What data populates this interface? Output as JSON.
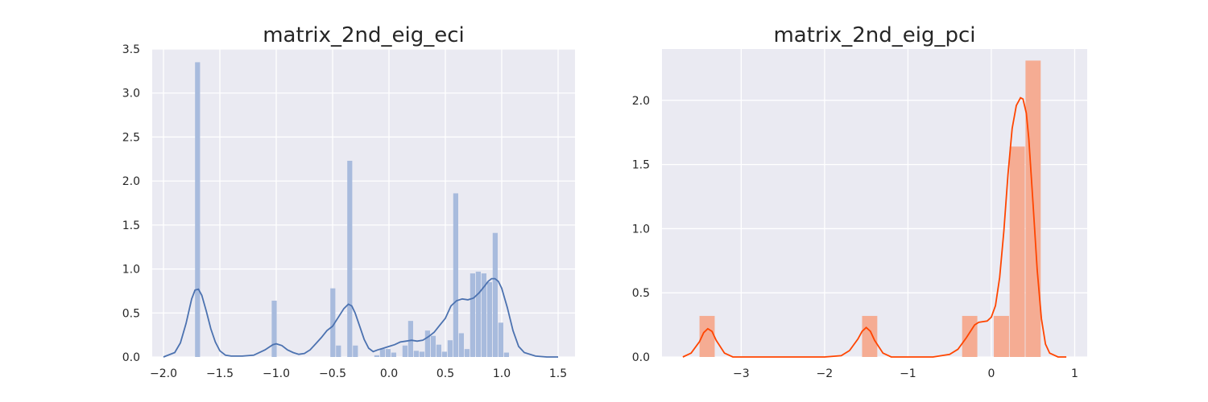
{
  "chart_data": [
    {
      "type": "bar",
      "title": "matrix_2nd_eig_eci",
      "xlabel": "",
      "ylabel": "",
      "xlim": [
        -2.1,
        1.65
      ],
      "ylim": [
        0,
        3.5
      ],
      "xticks": [
        -2.0,
        -1.5,
        -1.0,
        -0.5,
        0.0,
        0.5,
        1.0,
        1.5
      ],
      "xtick_labels": [
        "−2.0",
        "−1.5",
        "−1.0",
        "−0.5",
        "0.0",
        "0.5",
        "1.0",
        "1.5"
      ],
      "yticks": [
        0.0,
        0.5,
        1.0,
        1.5,
        2.0,
        2.5,
        3.0,
        3.5
      ],
      "ytick_labels": [
        "0.0",
        "0.5",
        "1.0",
        "1.5",
        "2.0",
        "2.5",
        "3.0",
        "3.5"
      ],
      "grid": true,
      "bar_color": "#a8bbdd",
      "kde_color": "#4c72b0",
      "histogram": [
        {
          "x0": -1.72,
          "x1": -1.67,
          "y": 3.35
        },
        {
          "x0": -1.04,
          "x1": -0.99,
          "y": 0.64
        },
        {
          "x0": -0.52,
          "x1": -0.47,
          "y": 0.78
        },
        {
          "x0": -0.47,
          "x1": -0.42,
          "y": 0.13
        },
        {
          "x0": -0.37,
          "x1": -0.32,
          "y": 2.23
        },
        {
          "x0": -0.32,
          "x1": -0.27,
          "y": 0.13
        },
        {
          "x0": -0.13,
          "x1": -0.08,
          "y": 0.02
        },
        {
          "x0": -0.08,
          "x1": -0.03,
          "y": 0.09
        },
        {
          "x0": -0.03,
          "x1": 0.02,
          "y": 0.09
        },
        {
          "x0": 0.02,
          "x1": 0.07,
          "y": 0.05
        },
        {
          "x0": 0.12,
          "x1": 0.17,
          "y": 0.13
        },
        {
          "x0": 0.17,
          "x1": 0.22,
          "y": 0.41
        },
        {
          "x0": 0.22,
          "x1": 0.27,
          "y": 0.07
        },
        {
          "x0": 0.27,
          "x1": 0.32,
          "y": 0.06
        },
        {
          "x0": 0.32,
          "x1": 0.37,
          "y": 0.3
        },
        {
          "x0": 0.37,
          "x1": 0.42,
          "y": 0.24
        },
        {
          "x0": 0.42,
          "x1": 0.47,
          "y": 0.14
        },
        {
          "x0": 0.47,
          "x1": 0.52,
          "y": 0.06
        },
        {
          "x0": 0.52,
          "x1": 0.57,
          "y": 0.19
        },
        {
          "x0": 0.57,
          "x1": 0.62,
          "y": 1.86
        },
        {
          "x0": 0.62,
          "x1": 0.67,
          "y": 0.27
        },
        {
          "x0": 0.67,
          "x1": 0.72,
          "y": 0.09
        },
        {
          "x0": 0.72,
          "x1": 0.77,
          "y": 0.95
        },
        {
          "x0": 0.77,
          "x1": 0.82,
          "y": 0.97
        },
        {
          "x0": 0.82,
          "x1": 0.87,
          "y": 0.95
        },
        {
          "x0": 0.87,
          "x1": 0.92,
          "y": 0.85
        },
        {
          "x0": 0.92,
          "x1": 0.97,
          "y": 1.41
        },
        {
          "x0": 0.97,
          "x1": 1.02,
          "y": 0.39
        },
        {
          "x0": 1.02,
          "x1": 1.07,
          "y": 0.05
        }
      ],
      "kde": {
        "x": [
          -2.0,
          -1.9,
          -1.85,
          -1.8,
          -1.75,
          -1.72,
          -1.69,
          -1.66,
          -1.62,
          -1.58,
          -1.54,
          -1.5,
          -1.45,
          -1.4,
          -1.3,
          -1.2,
          -1.1,
          -1.03,
          -1.0,
          -0.95,
          -0.9,
          -0.85,
          -0.8,
          -0.75,
          -0.7,
          -0.65,
          -0.6,
          -0.55,
          -0.5,
          -0.45,
          -0.4,
          -0.36,
          -0.33,
          -0.3,
          -0.26,
          -0.22,
          -0.18,
          -0.14,
          -0.1,
          -0.05,
          0.0,
          0.05,
          0.1,
          0.15,
          0.2,
          0.25,
          0.3,
          0.35,
          0.4,
          0.45,
          0.5,
          0.55,
          0.6,
          0.65,
          0.7,
          0.75,
          0.8,
          0.85,
          0.88,
          0.91,
          0.94,
          0.97,
          1.0,
          1.05,
          1.1,
          1.15,
          1.2,
          1.3,
          1.4,
          1.5
        ],
        "y": [
          0.0,
          0.05,
          0.16,
          0.38,
          0.66,
          0.76,
          0.77,
          0.7,
          0.52,
          0.32,
          0.17,
          0.07,
          0.02,
          0.01,
          0.01,
          0.02,
          0.08,
          0.14,
          0.15,
          0.13,
          0.08,
          0.05,
          0.03,
          0.04,
          0.08,
          0.15,
          0.22,
          0.3,
          0.35,
          0.45,
          0.55,
          0.6,
          0.58,
          0.5,
          0.35,
          0.2,
          0.1,
          0.06,
          0.08,
          0.1,
          0.12,
          0.14,
          0.17,
          0.18,
          0.19,
          0.18,
          0.19,
          0.23,
          0.28,
          0.36,
          0.44,
          0.58,
          0.64,
          0.66,
          0.65,
          0.67,
          0.73,
          0.81,
          0.86,
          0.89,
          0.89,
          0.86,
          0.78,
          0.56,
          0.3,
          0.12,
          0.05,
          0.01,
          0.0,
          0.0
        ]
      }
    },
    {
      "type": "bar",
      "title": "matrix_2nd_eig_pci",
      "xlabel": "",
      "ylabel": "",
      "xlim": [
        -3.95,
        1.15
      ],
      "ylim": [
        0,
        2.4
      ],
      "xticks": [
        -3,
        -2,
        -1,
        0,
        1
      ],
      "xtick_labels": [
        "−3",
        "−2",
        "−1",
        "0",
        "1"
      ],
      "yticks": [
        0.0,
        0.5,
        1.0,
        1.5,
        2.0
      ],
      "ytick_labels": [
        "0.0",
        "0.5",
        "1.0",
        "1.5",
        "2.0"
      ],
      "grid": true,
      "bar_color": "#f5ac93",
      "kde_color": "#ff4500",
      "histogram": [
        {
          "x0": -3.5,
          "x1": -3.31,
          "y": 0.32
        },
        {
          "x0": -1.55,
          "x1": -1.36,
          "y": 0.32
        },
        {
          "x0": -0.35,
          "x1": -0.16,
          "y": 0.32
        },
        {
          "x0": 0.03,
          "x1": 0.22,
          "y": 0.32
        },
        {
          "x0": 0.22,
          "x1": 0.41,
          "y": 1.64
        },
        {
          "x0": 0.41,
          "x1": 0.6,
          "y": 2.31
        }
      ],
      "kde": {
        "x": [
          -3.7,
          -3.6,
          -3.5,
          -3.45,
          -3.4,
          -3.35,
          -3.3,
          -3.2,
          -3.1,
          -3.0,
          -2.5,
          -2.0,
          -1.8,
          -1.7,
          -1.6,
          -1.55,
          -1.5,
          -1.45,
          -1.4,
          -1.3,
          -1.2,
          -1.1,
          -1.0,
          -0.7,
          -0.5,
          -0.4,
          -0.3,
          -0.2,
          -0.15,
          -0.05,
          0.0,
          0.05,
          0.1,
          0.15,
          0.2,
          0.25,
          0.3,
          0.35,
          0.38,
          0.42,
          0.45,
          0.5,
          0.55,
          0.6,
          0.65,
          0.7,
          0.8,
          0.9
        ],
        "y": [
          0.0,
          0.03,
          0.12,
          0.19,
          0.22,
          0.2,
          0.13,
          0.03,
          0.0,
          0.0,
          0.0,
          0.0,
          0.01,
          0.05,
          0.14,
          0.2,
          0.23,
          0.2,
          0.13,
          0.03,
          0.0,
          0.0,
          0.0,
          0.0,
          0.02,
          0.06,
          0.15,
          0.25,
          0.27,
          0.28,
          0.31,
          0.4,
          0.62,
          0.98,
          1.42,
          1.78,
          1.96,
          2.02,
          2.01,
          1.9,
          1.7,
          1.2,
          0.68,
          0.3,
          0.1,
          0.03,
          0.0,
          0.0
        ]
      }
    }
  ]
}
